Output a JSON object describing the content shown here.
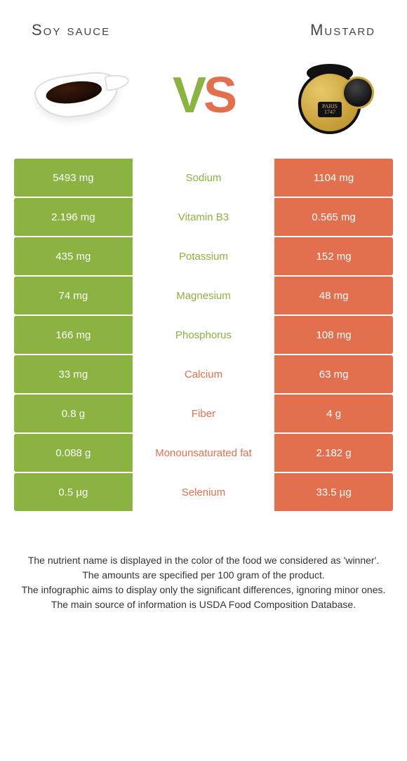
{
  "header": {
    "left_title": "Soy sauce",
    "right_title": "Mustard",
    "vs_v": "V",
    "vs_s": "S",
    "jar_label_line1": "PARIS",
    "jar_label_line2": "1747"
  },
  "colors": {
    "green": "#8bb341",
    "orange": "#e2704f",
    "mid_green_text": "#8bb341",
    "mid_orange_text": "#e2704f",
    "background": "#ffffff"
  },
  "rows": [
    {
      "nutrient": "Sodium",
      "left": "5493 mg",
      "right": "1104 mg",
      "winner": "left"
    },
    {
      "nutrient": "Vitamin B3",
      "left": "2.196 mg",
      "right": "0.565 mg",
      "winner": "left"
    },
    {
      "nutrient": "Potassium",
      "left": "435 mg",
      "right": "152 mg",
      "winner": "left"
    },
    {
      "nutrient": "Magnesium",
      "left": "74 mg",
      "right": "48 mg",
      "winner": "left"
    },
    {
      "nutrient": "Phosphorus",
      "left": "166 mg",
      "right": "108 mg",
      "winner": "left"
    },
    {
      "nutrient": "Calcium",
      "left": "33 mg",
      "right": "63 mg",
      "winner": "right"
    },
    {
      "nutrient": "Fiber",
      "left": "0.8 g",
      "right": "4 g",
      "winner": "right"
    },
    {
      "nutrient": "Monounsaturated fat",
      "left": "0.088 g",
      "right": "2.182 g",
      "winner": "right"
    },
    {
      "nutrient": "Selenium",
      "left": "0.5 µg",
      "right": "33.5 µg",
      "winner": "right"
    }
  ],
  "footer": {
    "line1": "The nutrient name is displayed in the color of the food we considered as 'winner'.",
    "line2": "The amounts are specified per 100 gram of the product.",
    "line3": "The infographic aims to display only the significant differences, ignoring minor ones.",
    "line4": "The main source of information is USDA Food Composition Database."
  }
}
